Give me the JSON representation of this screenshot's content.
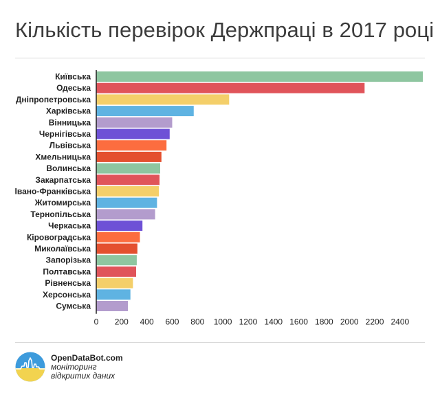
{
  "title": "Кількість перевірок Держпраці в 2017 році",
  "brand": {
    "name": "OpenDataBot.com",
    "tagline_line1": "моніторинг",
    "tagline_line2": "відкритих даних",
    "logo_icon": "sun-city-logo-icon",
    "logo_colors": {
      "top": "#3d9bdc",
      "bottom": "#f2d34f"
    }
  },
  "chart_data": {
    "type": "bar",
    "orientation": "horizontal",
    "title": "Кількість перевірок Держпраці в 2017 році",
    "xlabel": "",
    "ylabel": "",
    "xlim": [
      0,
      2580
    ],
    "xticks": [
      0,
      200,
      400,
      600,
      800,
      1000,
      1200,
      1400,
      1600,
      1800,
      2000,
      2200,
      2400
    ],
    "grid": false,
    "legend": "none",
    "categories": [
      "Київська",
      "Одеська",
      "Дніпропетровська",
      "Харківська",
      "Вінницька",
      "Чернігівська",
      "Львівська",
      "Хмельницька",
      "Волинська",
      "Закарпатська",
      "Івано-Франківська",
      "Житомирська",
      "Тернопільська",
      "Черкаська",
      "Кіровоградська",
      "Миколаївська",
      "Запорізька",
      "Полтавська",
      "Рівненська",
      "Херсонська",
      "Сумська"
    ],
    "values": [
      2580,
      2120,
      1050,
      770,
      600,
      580,
      555,
      515,
      505,
      500,
      495,
      480,
      465,
      365,
      345,
      325,
      320,
      315,
      290,
      270,
      250
    ],
    "colors": [
      "#8ec6a0",
      "#e0545a",
      "#f4cf6a",
      "#5fb3e2",
      "#b39ccd",
      "#6e51d6",
      "#fc6d3f",
      "#e4502f",
      "#8ec6a0",
      "#e0545a",
      "#f4cf6a",
      "#5fb3e2",
      "#b39ccd",
      "#6e51d6",
      "#fc6d3f",
      "#e4502f",
      "#8ec6a0",
      "#e0545a",
      "#f4cf6a",
      "#5fb3e2",
      "#b39ccd"
    ]
  }
}
